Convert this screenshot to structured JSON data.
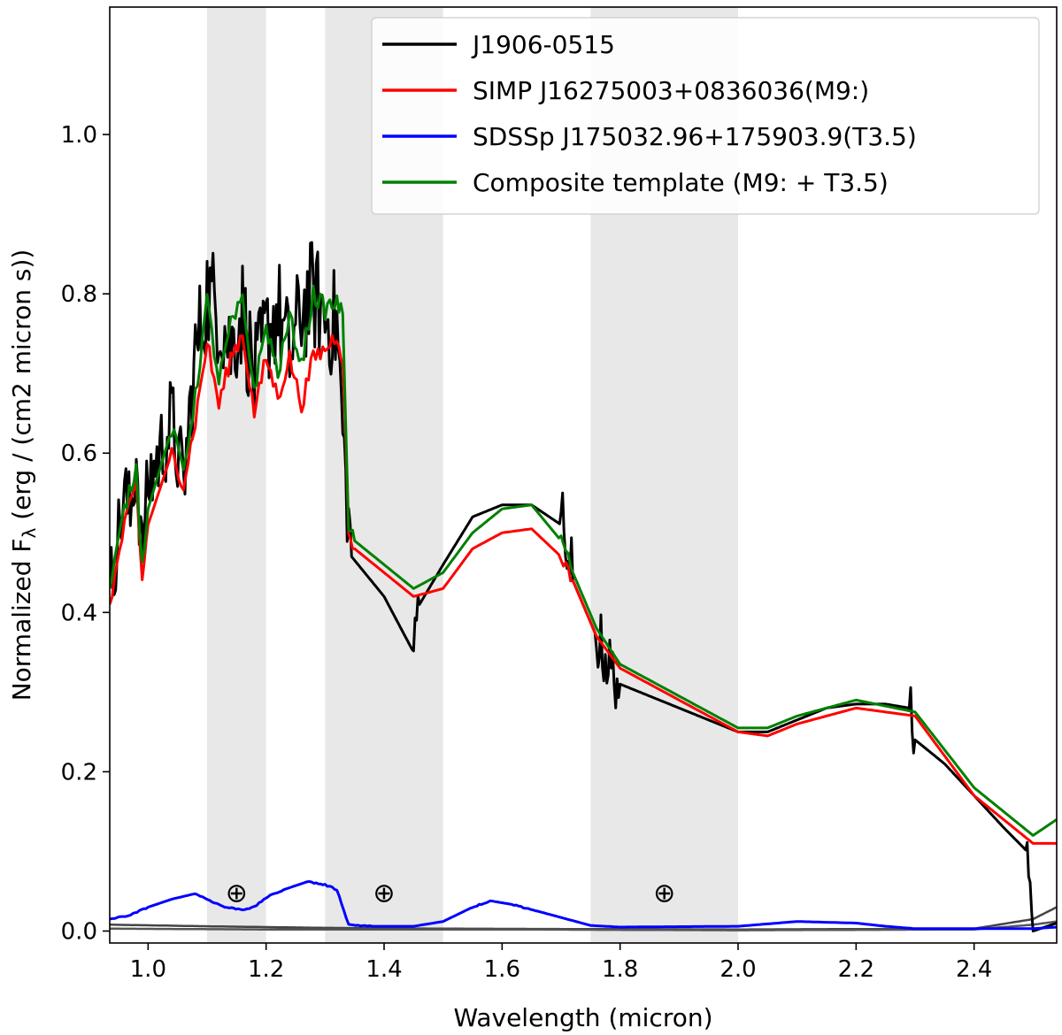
{
  "chart_data": {
    "type": "line",
    "xlabel": "Wavelength (micron)",
    "ylabel_main": "Normalized F",
    "ylabel_sub": "λ",
    "ylabel_rest": " (erg / (cm2 micron s))",
    "xlim": [
      0.935,
      2.54
    ],
    "ylim": [
      -0.015,
      1.16
    ],
    "x_ticks": [
      1.0,
      1.2,
      1.4,
      1.6,
      1.8,
      2.0,
      2.2,
      2.4
    ],
    "x_tick_labels": [
      "1.0",
      "1.2",
      "1.4",
      "1.6",
      "1.8",
      "2.0",
      "2.2",
      "2.4"
    ],
    "y_ticks": [
      0.0,
      0.2,
      0.4,
      0.6,
      0.8,
      1.0
    ],
    "y_tick_labels": [
      "0.0",
      "0.2",
      "0.4",
      "0.6",
      "0.8",
      "1.0"
    ],
    "grid": false,
    "legend_position": "top-right",
    "shaded_regions": [
      {
        "x0": 1.1,
        "x1": 1.2,
        "color": "#e8e8e8"
      },
      {
        "x0": 1.3,
        "x1": 1.5,
        "color": "#e8e8e8"
      },
      {
        "x0": 1.75,
        "x1": 2.0,
        "color": "#e8e8e8"
      }
    ],
    "annotations": [
      {
        "text": "⊕",
        "x": 1.15,
        "y": 0.048
      },
      {
        "text": "⊕",
        "x": 1.4,
        "y": 0.048
      },
      {
        "text": "⊕",
        "x": 1.875,
        "y": 0.048
      }
    ],
    "series": [
      {
        "name": "J1906-0515",
        "color": "#000000",
        "noise": 0.035,
        "points": [
          [
            0.935,
            0.43
          ],
          [
            0.95,
            0.5
          ],
          [
            0.96,
            0.55
          ],
          [
            0.97,
            0.52
          ],
          [
            0.98,
            0.6
          ],
          [
            0.99,
            0.47
          ],
          [
            1.0,
            0.56
          ],
          [
            1.02,
            0.6
          ],
          [
            1.04,
            0.64
          ],
          [
            1.06,
            0.56
          ],
          [
            1.08,
            0.72
          ],
          [
            1.1,
            0.8
          ],
          [
            1.12,
            0.78
          ],
          [
            1.14,
            0.73
          ],
          [
            1.16,
            0.78
          ],
          [
            1.18,
            0.69
          ],
          [
            1.2,
            0.75
          ],
          [
            1.22,
            0.78
          ],
          [
            1.24,
            0.72
          ],
          [
            1.26,
            0.78
          ],
          [
            1.28,
            0.8
          ],
          [
            1.3,
            0.77
          ],
          [
            1.32,
            0.76
          ],
          [
            1.335,
            0.56
          ],
          [
            1.345,
            0.47
          ],
          [
            1.4,
            0.42
          ],
          [
            1.45,
            0.35
          ],
          [
            1.46,
            0.41
          ],
          [
            1.5,
            0.46
          ],
          [
            1.55,
            0.52
          ],
          [
            1.6,
            0.535
          ],
          [
            1.65,
            0.535
          ],
          [
            1.7,
            0.51
          ],
          [
            1.72,
            0.44
          ],
          [
            1.76,
            0.37
          ],
          [
            1.79,
            0.32
          ],
          [
            1.8,
            0.31
          ],
          [
            1.9,
            0.28
          ],
          [
            2.0,
            0.25
          ],
          [
            2.05,
            0.25
          ],
          [
            2.1,
            0.265
          ],
          [
            2.15,
            0.28
          ],
          [
            2.2,
            0.285
          ],
          [
            2.25,
            0.285
          ],
          [
            2.29,
            0.28
          ],
          [
            2.3,
            0.24
          ],
          [
            2.35,
            0.21
          ],
          [
            2.4,
            0.17
          ],
          [
            2.45,
            0.13
          ],
          [
            2.49,
            0.1
          ],
          [
            2.5,
            0.0
          ],
          [
            2.54,
            0.01
          ]
        ]
      },
      {
        "name": "SIMP J16275003+0836036(M9:)",
        "color": "#ff0000",
        "noise": 0.006,
        "points": [
          [
            0.935,
            0.41
          ],
          [
            0.96,
            0.51
          ],
          [
            0.98,
            0.56
          ],
          [
            0.99,
            0.44
          ],
          [
            1.0,
            0.51
          ],
          [
            1.04,
            0.6
          ],
          [
            1.06,
            0.56
          ],
          [
            1.08,
            0.64
          ],
          [
            1.1,
            0.74
          ],
          [
            1.12,
            0.66
          ],
          [
            1.14,
            0.72
          ],
          [
            1.16,
            0.75
          ],
          [
            1.18,
            0.65
          ],
          [
            1.2,
            0.72
          ],
          [
            1.22,
            0.67
          ],
          [
            1.24,
            0.72
          ],
          [
            1.26,
            0.66
          ],
          [
            1.28,
            0.72
          ],
          [
            1.3,
            0.73
          ],
          [
            1.32,
            0.75
          ],
          [
            1.33,
            0.72
          ],
          [
            1.34,
            0.5
          ],
          [
            1.35,
            0.48
          ],
          [
            1.45,
            0.42
          ],
          [
            1.5,
            0.43
          ],
          [
            1.55,
            0.48
          ],
          [
            1.6,
            0.5
          ],
          [
            1.65,
            0.505
          ],
          [
            1.7,
            0.47
          ],
          [
            1.72,
            0.44
          ],
          [
            1.76,
            0.37
          ],
          [
            1.8,
            0.33
          ],
          [
            2.0,
            0.25
          ],
          [
            2.05,
            0.245
          ],
          [
            2.1,
            0.26
          ],
          [
            2.2,
            0.28
          ],
          [
            2.3,
            0.27
          ],
          [
            2.4,
            0.17
          ],
          [
            2.5,
            0.11
          ],
          [
            2.54,
            0.11
          ]
        ]
      },
      {
        "name": "SDSSp J175032.96+175903.9(T3.5)",
        "color": "#0000ff",
        "noise": 0.0015,
        "points": [
          [
            0.935,
            0.015
          ],
          [
            0.97,
            0.02
          ],
          [
            1.0,
            0.03
          ],
          [
            1.04,
            0.04
          ],
          [
            1.08,
            0.047
          ],
          [
            1.1,
            0.04
          ],
          [
            1.13,
            0.03
          ],
          [
            1.16,
            0.027
          ],
          [
            1.18,
            0.03
          ],
          [
            1.2,
            0.042
          ],
          [
            1.23,
            0.052
          ],
          [
            1.27,
            0.062
          ],
          [
            1.3,
            0.058
          ],
          [
            1.32,
            0.052
          ],
          [
            1.34,
            0.008
          ],
          [
            1.38,
            0.006
          ],
          [
            1.45,
            0.006
          ],
          [
            1.5,
            0.012
          ],
          [
            1.55,
            0.03
          ],
          [
            1.58,
            0.038
          ],
          [
            1.62,
            0.033
          ],
          [
            1.66,
            0.025
          ],
          [
            1.7,
            0.017
          ],
          [
            1.75,
            0.007
          ],
          [
            1.8,
            0.005
          ],
          [
            2.0,
            0.006
          ],
          [
            2.05,
            0.009
          ],
          [
            2.1,
            0.012
          ],
          [
            2.2,
            0.01
          ],
          [
            2.25,
            0.006
          ],
          [
            2.3,
            0.003
          ],
          [
            2.4,
            0.003
          ],
          [
            2.5,
            0.003
          ],
          [
            2.54,
            0.005
          ]
        ]
      },
      {
        "name": "Composite template (M9: + T3.5)",
        "color": "#008000",
        "noise": 0.006,
        "points": [
          [
            0.935,
            0.43
          ],
          [
            0.96,
            0.53
          ],
          [
            0.98,
            0.58
          ],
          [
            0.99,
            0.46
          ],
          [
            1.0,
            0.53
          ],
          [
            1.04,
            0.63
          ],
          [
            1.06,
            0.58
          ],
          [
            1.08,
            0.67
          ],
          [
            1.1,
            0.79
          ],
          [
            1.12,
            0.69
          ],
          [
            1.14,
            0.76
          ],
          [
            1.16,
            0.79
          ],
          [
            1.18,
            0.68
          ],
          [
            1.2,
            0.76
          ],
          [
            1.22,
            0.7
          ],
          [
            1.24,
            0.77
          ],
          [
            1.26,
            0.71
          ],
          [
            1.28,
            0.8
          ],
          [
            1.3,
            0.78
          ],
          [
            1.32,
            0.79
          ],
          [
            1.33,
            0.77
          ],
          [
            1.34,
            0.51
          ],
          [
            1.35,
            0.49
          ],
          [
            1.45,
            0.43
          ],
          [
            1.5,
            0.45
          ],
          [
            1.55,
            0.5
          ],
          [
            1.6,
            0.53
          ],
          [
            1.65,
            0.535
          ],
          [
            1.7,
            0.49
          ],
          [
            1.72,
            0.45
          ],
          [
            1.76,
            0.38
          ],
          [
            1.8,
            0.335
          ],
          [
            2.0,
            0.255
          ],
          [
            2.05,
            0.255
          ],
          [
            2.1,
            0.27
          ],
          [
            2.2,
            0.29
          ],
          [
            2.3,
            0.275
          ],
          [
            2.4,
            0.18
          ],
          [
            2.5,
            0.12
          ],
          [
            2.54,
            0.14
          ]
        ]
      }
    ],
    "baseline_series": [
      {
        "color": "#444444",
        "points": [
          [
            0.935,
            0.008
          ],
          [
            1.1,
            0.006
          ],
          [
            1.3,
            0.004
          ],
          [
            1.5,
            0.003
          ],
          [
            2.0,
            0.002
          ],
          [
            2.4,
            0.003
          ],
          [
            2.5,
            0.015
          ],
          [
            2.54,
            0.03
          ]
        ]
      },
      {
        "color": "#555555",
        "points": [
          [
            0.935,
            0.003
          ],
          [
            1.2,
            0.002
          ],
          [
            1.6,
            0.002
          ],
          [
            2.0,
            0.001
          ],
          [
            2.4,
            0.002
          ],
          [
            2.5,
            0.008
          ],
          [
            2.54,
            0.012
          ]
        ]
      }
    ]
  }
}
